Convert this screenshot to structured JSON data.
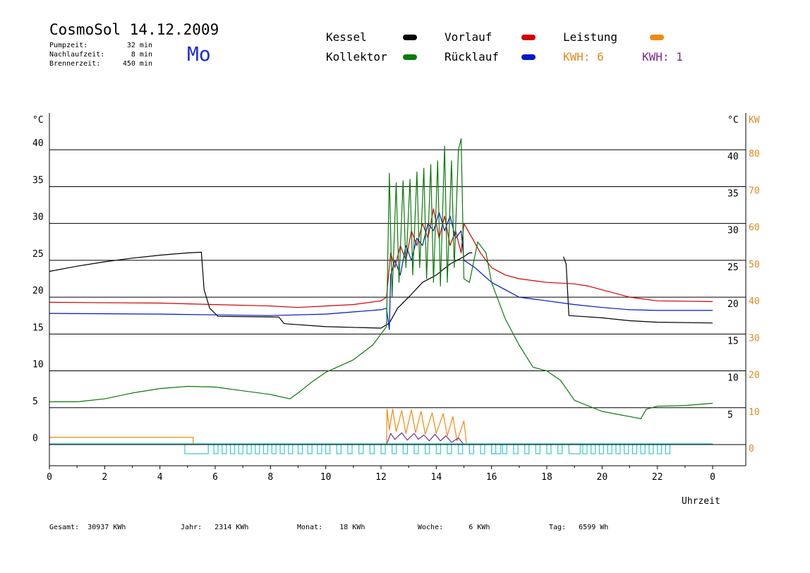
{
  "header": {
    "title": "CosmoSol 14.12.2009",
    "day": "Mo",
    "stats": [
      {
        "label": "Pumpzeit:",
        "value": "32 min"
      },
      {
        "label": "Nachlaufzeit:",
        "value": "8 min"
      },
      {
        "label": "Brennerzeit:",
        "value": "450 min"
      }
    ]
  },
  "legend": {
    "kessel": "Kessel",
    "kollektor": "Kollektor",
    "vorlauf": "Vorlauf",
    "ruecklauf": "Rücklauf",
    "leistung": "Leistung",
    "kwh_orange": "KWH: 6",
    "kwh_purple": "KWH: 1"
  },
  "colors": {
    "kessel": "#000000",
    "kollektor": "#0a7a0a",
    "vorlauf": "#d40000",
    "ruecklauf": "#0018c8",
    "leistung": "#f08a10",
    "purple": "#7a2a8a",
    "cyan": "#33cccc"
  },
  "footer": [
    {
      "label": "Gesamt:",
      "value": "30937 KWh"
    },
    {
      "label": "Jahr:",
      "value": "2314 KWh"
    },
    {
      "label": "Monat:",
      "value": "18 KWh"
    },
    {
      "label": "Woche:",
      "value": "6 KWh"
    },
    {
      "label": "Tag:",
      "value": "6599 Wh"
    }
  ],
  "chart_data": {
    "type": "line",
    "ylabel_left": "°C",
    "ylabel_right_temp": "°C",
    "ylabel_right_power": "KW",
    "xlabel": "Uhrzeit",
    "xlim": [
      0,
      24
    ],
    "ylim": [
      0,
      45
    ],
    "y2lim": [
      0,
      90
    ],
    "x_ticks": [
      "0",
      "2",
      "4",
      "6",
      "8",
      "10",
      "12",
      "14",
      "16",
      "18",
      "20",
      "22",
      "0"
    ],
    "y_ticks": [
      0,
      5,
      10,
      15,
      20,
      25,
      30,
      35,
      40
    ],
    "y_tick_labels": [
      "0",
      "5",
      "10",
      "15",
      "20",
      "25",
      "30",
      "35",
      "40"
    ],
    "y2_ticks": [
      0,
      10,
      20,
      30,
      40,
      50,
      60,
      70,
      80
    ],
    "y2_tick_labels": [
      "0",
      "10",
      "20",
      "30",
      "40",
      "50",
      "60",
      "70",
      "80"
    ],
    "grid": true,
    "series": [
      {
        "name": "Kessel",
        "key": "kessel",
        "points": [
          [
            0,
            23.5
          ],
          [
            1,
            24.2
          ],
          [
            2,
            24.8
          ],
          [
            3,
            25.3
          ],
          [
            4,
            25.7
          ],
          [
            5,
            26.0
          ],
          [
            5.5,
            26.1
          ],
          [
            5.6,
            21
          ],
          [
            5.8,
            18.5
          ],
          [
            6.1,
            17.4
          ],
          [
            8.3,
            17.3
          ],
          [
            8.5,
            16.4
          ],
          [
            10,
            16.0
          ],
          [
            12,
            15.8
          ],
          [
            12.3,
            16.5
          ],
          [
            12.6,
            18.5
          ],
          [
            13,
            20
          ],
          [
            13.5,
            22
          ],
          [
            14,
            23
          ],
          [
            14.5,
            24.5
          ],
          [
            15,
            25.5
          ],
          [
            15.2,
            26
          ],
          [
            15.3,
            26
          ]
        ]
      },
      {
        "name": "Kessel",
        "key": "kessel",
        "points": [
          [
            18.6,
            25.5
          ],
          [
            18.7,
            24.5
          ],
          [
            18.8,
            17.5
          ],
          [
            20,
            17.2
          ],
          [
            21,
            16.8
          ],
          [
            22,
            16.6
          ],
          [
            24,
            16.5
          ]
        ]
      },
      {
        "name": "Vorlauf",
        "key": "vorlauf",
        "points": [
          [
            0,
            19.3
          ],
          [
            4,
            19.2
          ],
          [
            6,
            19
          ],
          [
            8,
            18.8
          ],
          [
            9,
            18.6
          ],
          [
            10,
            18.8
          ],
          [
            11,
            19
          ],
          [
            12,
            19.5
          ],
          [
            12.2,
            20
          ],
          [
            12.35,
            26
          ],
          [
            12.5,
            24
          ],
          [
            12.7,
            27
          ],
          [
            12.9,
            25
          ],
          [
            13.1,
            29
          ],
          [
            13.3,
            27
          ],
          [
            13.5,
            30
          ],
          [
            13.7,
            28
          ],
          [
            13.9,
            32
          ],
          [
            14.1,
            28
          ],
          [
            14.3,
            31
          ],
          [
            14.5,
            27
          ],
          [
            14.7,
            29
          ],
          [
            14.9,
            26
          ],
          [
            15,
            30
          ],
          [
            15.3,
            28
          ],
          [
            15.6,
            26
          ],
          [
            16,
            24
          ],
          [
            16.5,
            23
          ],
          [
            17,
            22.5
          ],
          [
            18,
            22
          ],
          [
            19,
            21.8
          ],
          [
            19.5,
            21.5
          ],
          [
            20,
            21
          ],
          [
            21,
            20
          ],
          [
            22,
            19.5
          ],
          [
            24,
            19.4
          ]
        ]
      },
      {
        "name": "Rücklauf",
        "key": "ruecklauf",
        "points": [
          [
            0,
            17.8
          ],
          [
            4,
            17.7
          ],
          [
            6,
            17.6
          ],
          [
            8,
            17.5
          ],
          [
            10,
            17.7
          ],
          [
            11,
            18
          ],
          [
            12,
            18.3
          ],
          [
            12.2,
            18.5
          ],
          [
            12.3,
            15.6
          ],
          [
            12.35,
            23
          ],
          [
            12.5,
            25
          ],
          [
            12.7,
            23
          ],
          [
            12.9,
            27
          ],
          [
            13.1,
            25
          ],
          [
            13.3,
            28
          ],
          [
            13.5,
            27
          ],
          [
            13.7,
            30
          ],
          [
            13.9,
            29
          ],
          [
            14.1,
            31.5
          ],
          [
            14.3,
            29
          ],
          [
            14.5,
            31
          ],
          [
            14.7,
            28
          ],
          [
            14.9,
            29
          ],
          [
            15,
            25
          ],
          [
            15.4,
            24
          ],
          [
            16,
            22
          ],
          [
            16.5,
            21
          ],
          [
            17,
            20
          ],
          [
            18,
            19.5
          ],
          [
            19,
            19
          ],
          [
            20,
            18.6
          ],
          [
            21,
            18.3
          ],
          [
            22,
            18.2
          ],
          [
            24,
            18.2
          ]
        ]
      },
      {
        "name": "Kollektor",
        "key": "kollektor",
        "points": [
          [
            0,
            5.8
          ],
          [
            1,
            5.8
          ],
          [
            2,
            6.2
          ],
          [
            3,
            7
          ],
          [
            4,
            7.6
          ],
          [
            5,
            7.9
          ],
          [
            6,
            7.8
          ],
          [
            7,
            7.3
          ],
          [
            8,
            6.8
          ],
          [
            8.7,
            6.2
          ],
          [
            9,
            7
          ],
          [
            9.5,
            8.5
          ],
          [
            10,
            9.8
          ],
          [
            11,
            11.5
          ],
          [
            11.7,
            13.5
          ],
          [
            12,
            15
          ],
          [
            12.2,
            16
          ],
          [
            12.3,
            36.8
          ],
          [
            12.4,
            20
          ],
          [
            12.55,
            35.5
          ],
          [
            12.65,
            22
          ],
          [
            12.8,
            35.8
          ],
          [
            12.9,
            24
          ],
          [
            13.05,
            36
          ],
          [
            13.15,
            23
          ],
          [
            13.3,
            37
          ],
          [
            13.4,
            24
          ],
          [
            13.55,
            37.5
          ],
          [
            13.65,
            22.5
          ],
          [
            13.8,
            38
          ],
          [
            13.9,
            22
          ],
          [
            14.05,
            38.5
          ],
          [
            14.15,
            21.5
          ],
          [
            14.3,
            40.5
          ],
          [
            14.4,
            22
          ],
          [
            14.55,
            38.5
          ],
          [
            14.65,
            24
          ],
          [
            14.8,
            40
          ],
          [
            14.9,
            41.5
          ],
          [
            15,
            22.5
          ],
          [
            15.2,
            22
          ],
          [
            15.5,
            27.5
          ],
          [
            15.8,
            26
          ],
          [
            16,
            22
          ],
          [
            16.5,
            17
          ],
          [
            17,
            13.5
          ],
          [
            17.5,
            10.5
          ],
          [
            18,
            10
          ],
          [
            18.5,
            8.7
          ],
          [
            19,
            6
          ],
          [
            20,
            4.5
          ],
          [
            21,
            3.8
          ],
          [
            21.4,
            3.5
          ],
          [
            21.6,
            4.8
          ],
          [
            22,
            5.2
          ],
          [
            23,
            5.3
          ],
          [
            24,
            5.6
          ]
        ]
      },
      {
        "name": "Leistung",
        "key": "leistung",
        "points": [
          [
            0,
            1.0
          ],
          [
            5.2,
            1.0
          ],
          [
            5.2,
            0
          ]
        ]
      },
      {
        "name": "Leistung",
        "key": "leistung",
        "points": [
          [
            12.2,
            0
          ],
          [
            12.22,
            4.8
          ],
          [
            12.3,
            2
          ],
          [
            12.42,
            4.8
          ],
          [
            12.55,
            1.8
          ],
          [
            12.75,
            4.6
          ],
          [
            12.9,
            1.5
          ],
          [
            13.1,
            4.7
          ],
          [
            13.25,
            1.6
          ],
          [
            13.45,
            4.5
          ],
          [
            13.6,
            1.4
          ],
          [
            13.85,
            4.3
          ],
          [
            14.0,
            1.5
          ],
          [
            14.25,
            4.2
          ],
          [
            14.4,
            1.2
          ],
          [
            14.6,
            3.8
          ],
          [
            14.75,
            0.5
          ],
          [
            15.0,
            3.2
          ],
          [
            15.1,
            0
          ]
        ]
      },
      {
        "name": "Leistung",
        "key": "purple",
        "points": [
          [
            12.2,
            0
          ],
          [
            12.35,
            1.5
          ],
          [
            12.5,
            0.7
          ],
          [
            12.75,
            1.6
          ],
          [
            12.95,
            0.6
          ],
          [
            13.2,
            1.5
          ],
          [
            13.35,
            0.7
          ],
          [
            13.55,
            1.3
          ],
          [
            13.75,
            0.5
          ],
          [
            13.95,
            1.4
          ],
          [
            14.15,
            0.5
          ],
          [
            14.35,
            1.2
          ],
          [
            14.55,
            0.3
          ],
          [
            14.8,
            0.9
          ],
          [
            15.0,
            0
          ]
        ]
      }
    ]
  }
}
